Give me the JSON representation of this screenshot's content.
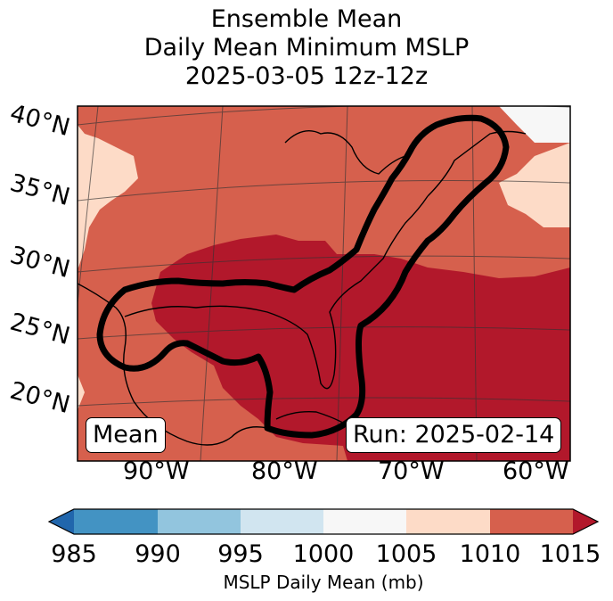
{
  "title": {
    "line1": "Ensemble Mean",
    "line2": "Daily Mean Minimum MSLP",
    "line3": "2025-03-05 12z-12z"
  },
  "map": {
    "lat_labels": [
      "40°N",
      "35°N",
      "30°N",
      "25°N",
      "20°N"
    ],
    "lon_labels": [
      "90°W",
      "80°W",
      "70°W",
      "60°W"
    ],
    "mean_label": "Mean",
    "run_label": "Run: 2025-02-14",
    "contour_color": "#000000"
  },
  "colorbar": {
    "ticks": [
      "985",
      "990",
      "995",
      "1000",
      "1005",
      "1010",
      "1015"
    ],
    "colors": [
      "#4393c3",
      "#92c5de",
      "#d1e5f0",
      "#f7f7f7",
      "#fddbc7",
      "#d6604d",
      "#b2182b"
    ],
    "under_color": "#2166ac",
    "over_color": "#b2182b",
    "label": "MSLP Daily Mean (mb)"
  }
}
